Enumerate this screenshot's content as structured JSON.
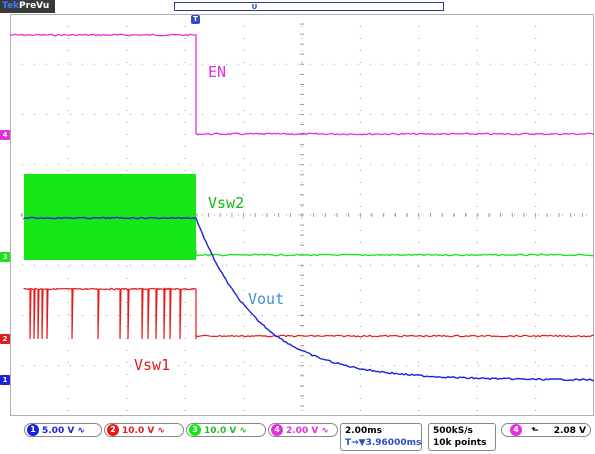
{
  "brand": {
    "prefix": "Tek",
    "mode": "PreVu"
  },
  "colors": {
    "ch1": "#1a22d6",
    "ch2": "#e31b1b",
    "ch3": "#16e616",
    "ch4": "#e22fe2",
    "grid": "#9a9a9a",
    "vout_label": "#3d8fd8"
  },
  "trace_labels": {
    "en": "EN",
    "vsw2": "Vsw2",
    "vout": "Vout",
    "vsw1": "Vsw1"
  },
  "markers": {
    "trigger_top": "T",
    "position_top": "U"
  },
  "channel_markers": [
    {
      "num": "4",
      "icon": "ch4-level-marker"
    },
    {
      "num": "3",
      "icon": "ch3-level-marker"
    },
    {
      "num": "2",
      "icon": "ch2-level-marker"
    },
    {
      "num": "1",
      "icon": "ch1-level-marker"
    }
  ],
  "status": {
    "ch1": {
      "num": "1",
      "scale": "5.00 V"
    },
    "ch2": {
      "num": "2",
      "scale": "10.0 V"
    },
    "ch3": {
      "num": "3",
      "scale": "10.0 V"
    },
    "ch4": {
      "num": "4",
      "scale": "2.00 V"
    },
    "timebase": "2.00ms",
    "delay": "T→▼3.96000ms",
    "sample_rate": "500kS/s",
    "record_length": "10k points",
    "trigger": {
      "num": "4",
      "slope": "⬑",
      "level": "2.08 V"
    }
  }
}
